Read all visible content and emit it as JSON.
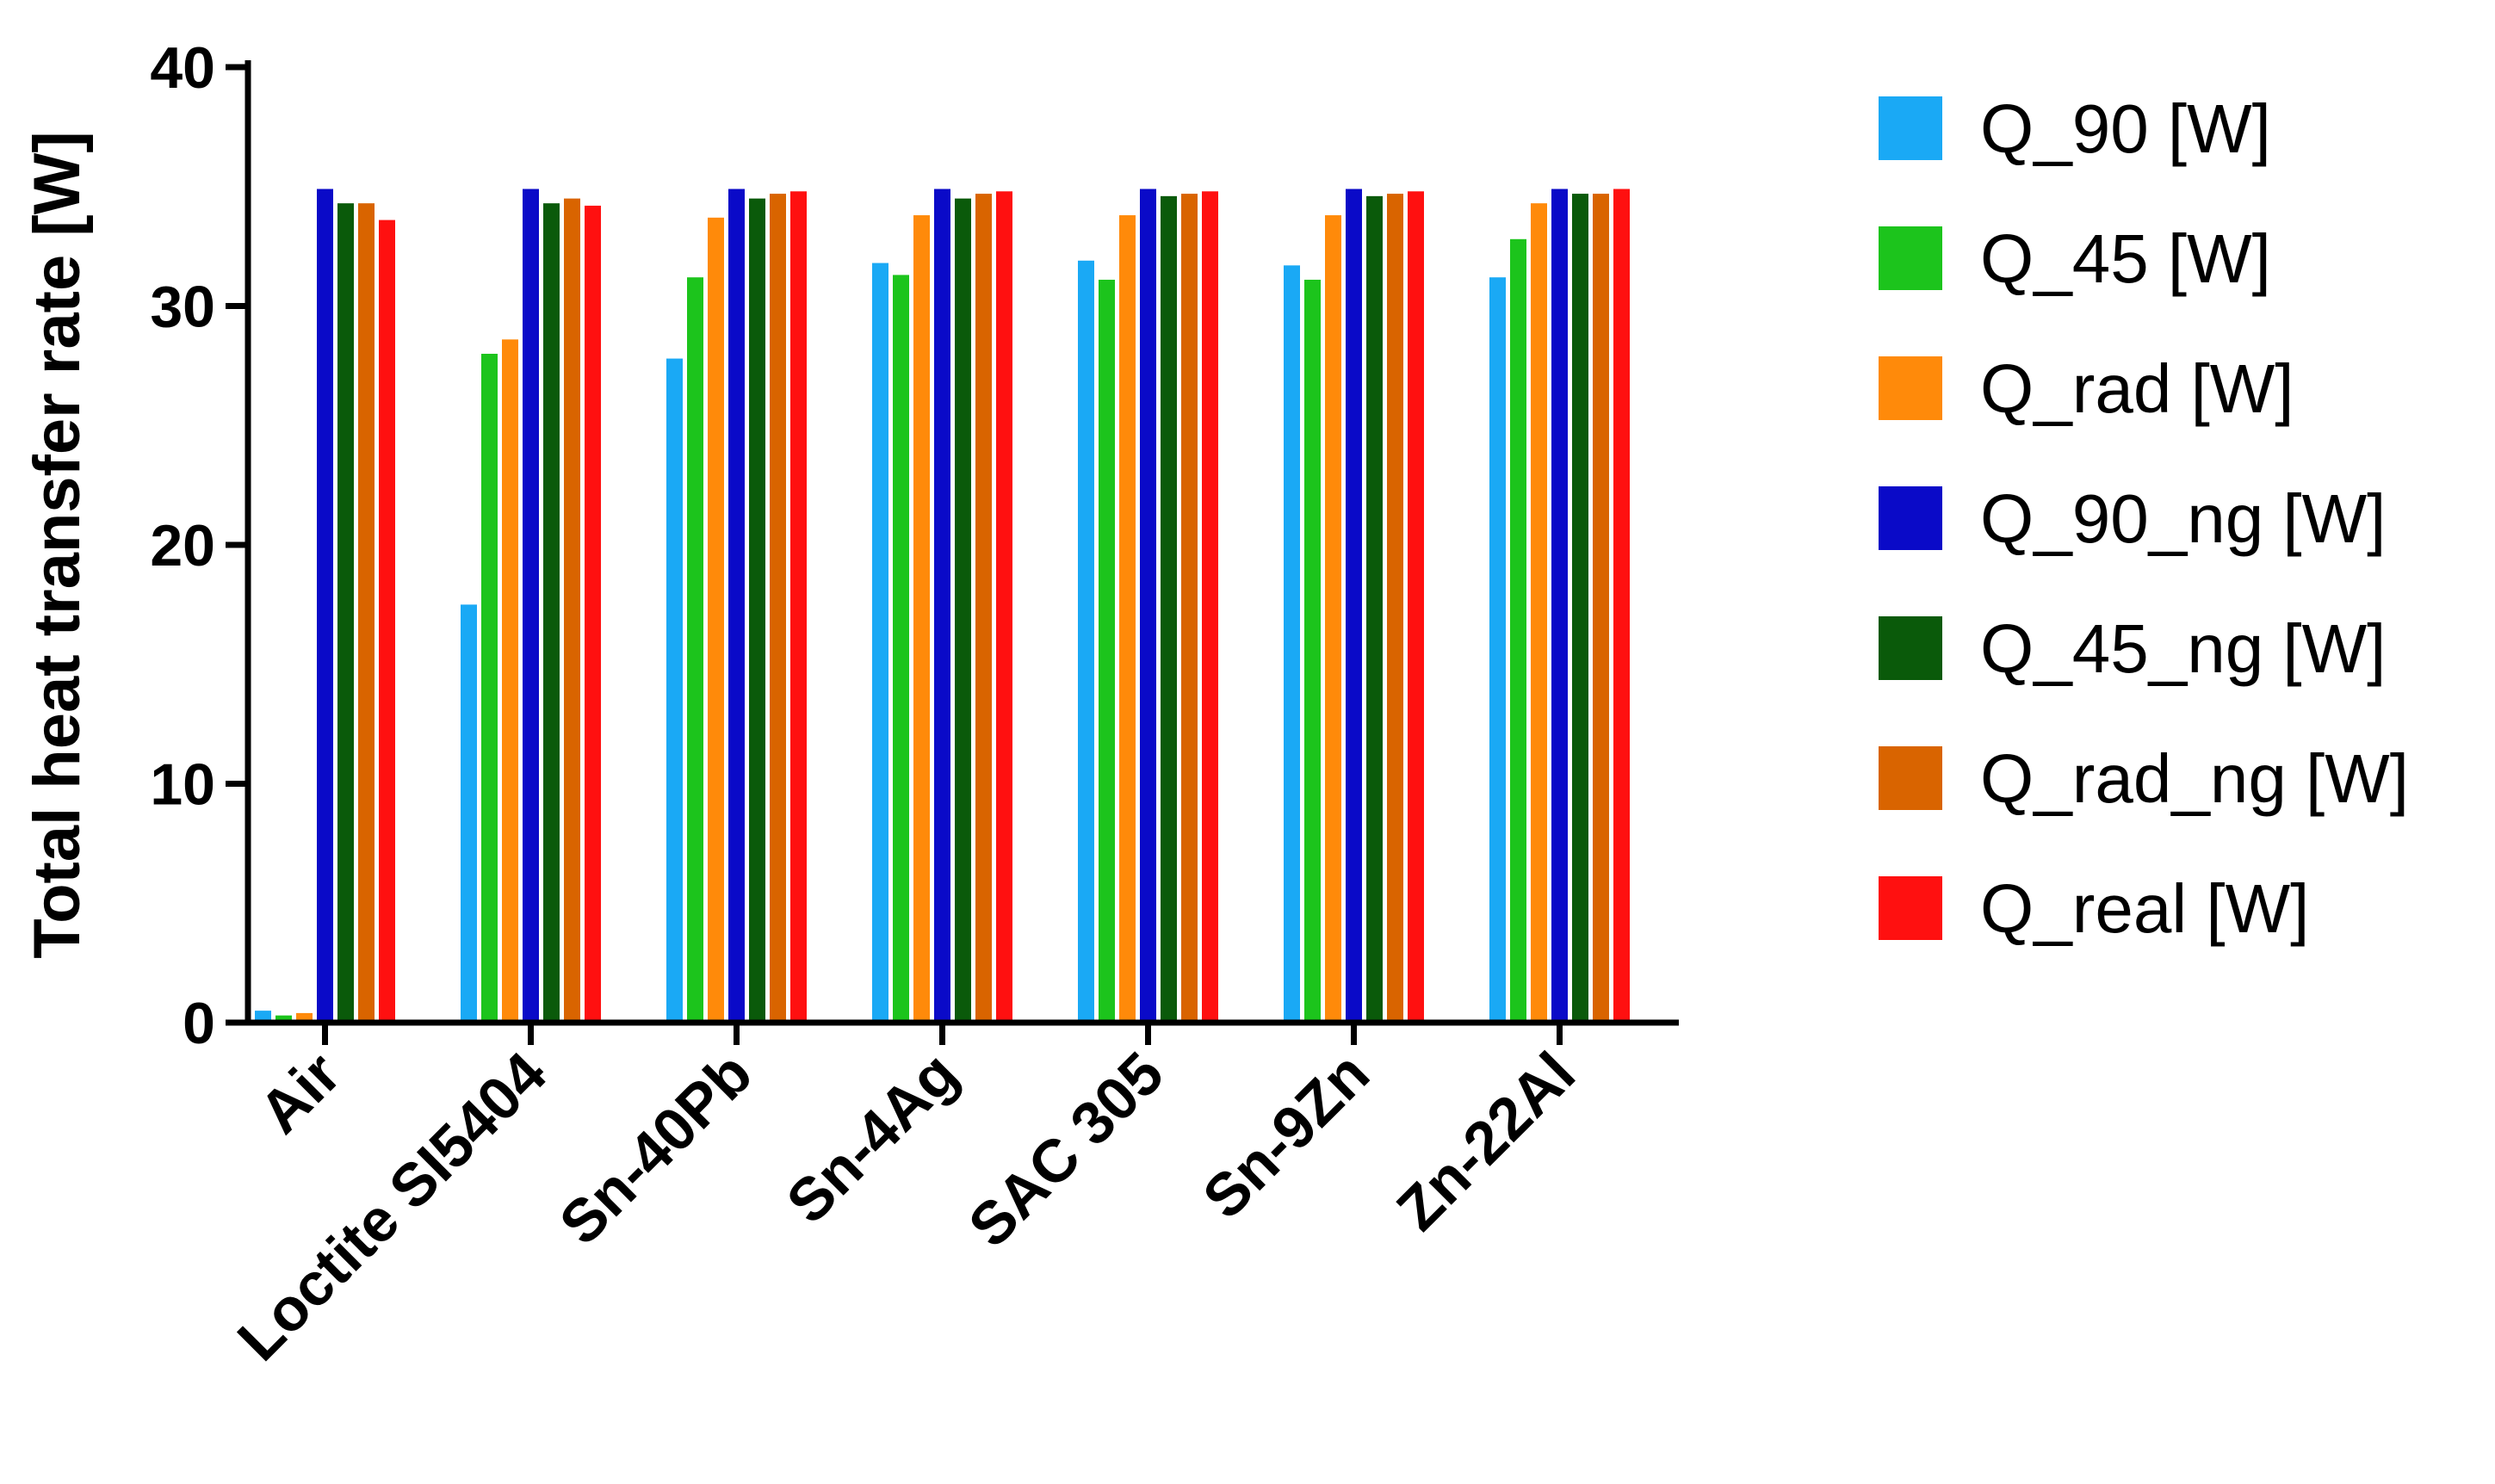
{
  "chart_data": {
    "type": "bar",
    "title": "",
    "xlabel": "",
    "ylabel": "Total heat transfer rate [W]",
    "ylim": [
      0,
      40
    ],
    "yticks": [
      0,
      10,
      20,
      30,
      40
    ],
    "grid": false,
    "legend_position": "right",
    "categories": [
      "Air",
      "Loctite SI5404",
      "Sn-40Pb",
      "Sn-4Ag",
      "SAC 305",
      "Sn-9Zn",
      "Zn-22Al"
    ],
    "series": [
      {
        "name": "Q_90 [W]",
        "color": "#1aa9f5",
        "values": [
          0.5,
          17.5,
          27.8,
          31.8,
          31.9,
          31.7,
          31.2
        ]
      },
      {
        "name": "Q_45 [W]",
        "color": "#1cc41c",
        "values": [
          0.3,
          28.0,
          31.2,
          31.3,
          31.1,
          31.1,
          32.8
        ]
      },
      {
        "name": "Q_rad [W]",
        "color": "#ff8a0a",
        "values": [
          0.4,
          28.6,
          33.7,
          33.8,
          33.8,
          33.8,
          34.3
        ]
      },
      {
        "name": "Q_90_ng [W]",
        "color": "#0a0ac8",
        "values": [
          34.9,
          34.9,
          34.9,
          34.9,
          34.9,
          34.9,
          34.9
        ]
      },
      {
        "name": "Q_45_ng [W]",
        "color": "#0a5a0a",
        "values": [
          34.3,
          34.3,
          34.5,
          34.5,
          34.6,
          34.6,
          34.7
        ]
      },
      {
        "name": "Q_rad_ng [W]",
        "color": "#d96400",
        "values": [
          34.3,
          34.5,
          34.7,
          34.7,
          34.7,
          34.7,
          34.7
        ]
      },
      {
        "name": "Q_real [W]",
        "color": "#ff1010",
        "values": [
          33.6,
          34.2,
          34.8,
          34.8,
          34.8,
          34.8,
          34.9
        ]
      }
    ]
  }
}
